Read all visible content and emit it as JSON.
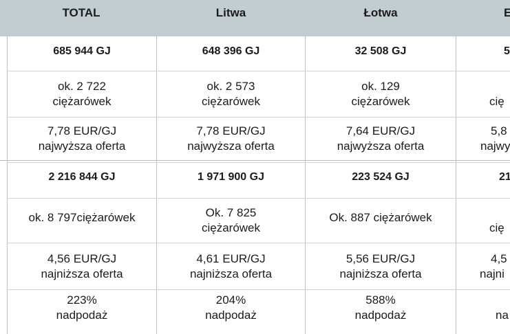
{
  "columns": [
    "TOTAL",
    "Litwa",
    "Łotwa",
    "E"
  ],
  "rows": [
    [
      "685 944 GJ",
      "648 396 GJ",
      "32 508 GJ",
      "5"
    ],
    [
      [
        "ok. 2 722",
        "ciężarówek"
      ],
      [
        "ok. 2 573",
        "ciężarówek"
      ],
      [
        "ok. 129",
        "ciężarówek"
      ],
      [
        "",
        "cię"
      ]
    ],
    [
      [
        "7,78 EUR/GJ",
        "najwyższa oferta"
      ],
      [
        "7,78 EUR/GJ",
        "najwyższa oferta"
      ],
      [
        "7,64 EUR/GJ",
        "najwyższa oferta"
      ],
      [
        "5,8",
        "najwy"
      ]
    ],
    [
      "2 216 844 GJ",
      "1 971 900 GJ",
      "223 524 GJ",
      "21"
    ],
    [
      [
        "ok. 8 797ciężarówek"
      ],
      [
        "Ok. 7 825",
        "ciężarówek"
      ],
      [
        "Ok. 887 ciężarówek"
      ],
      [
        "",
        "cię"
      ]
    ],
    [
      [
        "4,56 EUR/GJ",
        "najniższa oferta"
      ],
      [
        "4,61 EUR/GJ",
        "najniższa oferta"
      ],
      [
        "5,56 EUR/GJ",
        "najniższa oferta"
      ],
      [
        "4,5",
        "najni"
      ]
    ],
    [
      [
        "223%",
        "nadpodaż"
      ],
      [
        "204%",
        "nadpodaż"
      ],
      [
        "588%",
        "nadpodaż"
      ],
      [
        "",
        "na"
      ]
    ]
  ],
  "colors": {
    "header_bg": "#c2cdd2",
    "grid": "#b7c1c6"
  }
}
